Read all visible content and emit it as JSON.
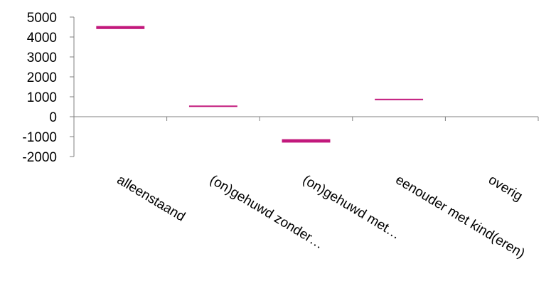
{
  "chart_data": {
    "type": "bar",
    "title": "",
    "xlabel": "",
    "ylabel": "",
    "categories": [
      "alleenstaand",
      "(on)gehuwd zonder…",
      "(on)gehuwd met…",
      "eenouder met kind(eren)",
      "overig"
    ],
    "series": [
      {
        "values": [
          {
            "low": 4400,
            "high": 4550
          },
          {
            "low": 500,
            "high": 560
          },
          {
            "low": -1300,
            "high": -1130
          },
          {
            "low": 880,
            "high": 900
          },
          null
        ]
      }
    ],
    "ylim": [
      -2000,
      5000
    ],
    "yticks": [
      "5000",
      "4000",
      "3000",
      "2000",
      "1000",
      "0",
      "-1000",
      "-2000"
    ],
    "grid": false,
    "legend": "none",
    "colors": {
      "bar": "#c2187c",
      "axis": "#808080",
      "text": "#000000"
    }
  }
}
